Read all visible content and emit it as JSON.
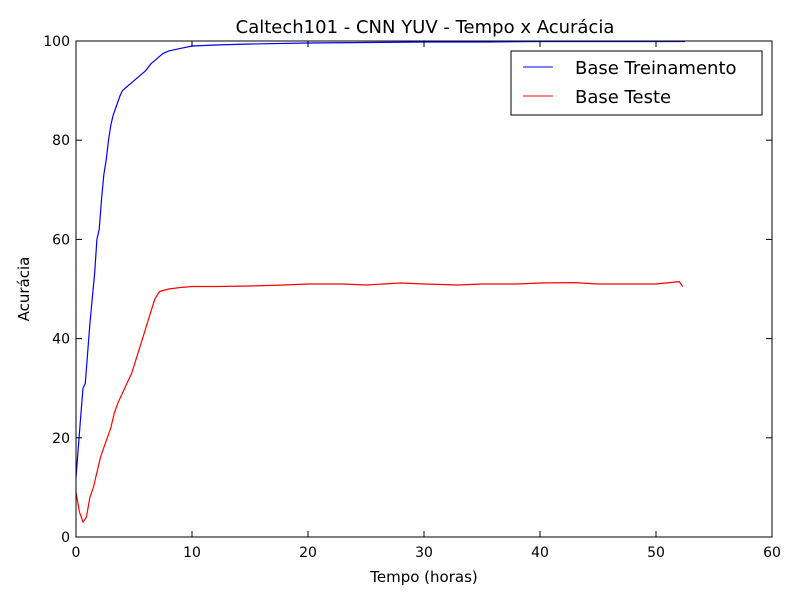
{
  "chart_data": {
    "type": "line",
    "title": "Caltech101 - CNN YUV - Tempo x Acurácia",
    "xlabel": "Tempo (horas)",
    "ylabel": "Acurácia",
    "xlim": [
      0,
      60
    ],
    "ylim": [
      0,
      100
    ],
    "xticks": [
      "0",
      "10",
      "20",
      "30",
      "40",
      "50",
      "60"
    ],
    "yticks": [
      "0",
      "20",
      "40",
      "60",
      "80",
      "100"
    ],
    "grid": false,
    "legend_position": "top-right",
    "series": [
      {
        "name": "Base Treinamento",
        "color": "#0000ff",
        "x": [
          0,
          0.2,
          0.4,
          0.6,
          0.8,
          1.0,
          1.2,
          1.4,
          1.6,
          1.8,
          2.0,
          2.2,
          2.4,
          2.6,
          2.8,
          3.0,
          3.2,
          3.5,
          3.8,
          4.0,
          4.5,
          5.0,
          5.5,
          6.0,
          6.5,
          7.0,
          7.5,
          8.0,
          9.0,
          10.0,
          12.0,
          15.0,
          20.0,
          25.0,
          30.0,
          35.0,
          40.0,
          45.0,
          50.0,
          52.5
        ],
        "y": [
          12,
          18,
          24,
          30,
          31,
          37,
          43,
          48,
          53,
          60,
          62,
          68,
          73,
          76,
          80,
          83,
          85,
          87,
          89,
          90,
          91,
          92,
          93,
          94,
          95.5,
          96.5,
          97.5,
          98,
          98.5,
          99,
          99.2,
          99.4,
          99.6,
          99.7,
          99.8,
          99.8,
          99.9,
          99.9,
          99.9,
          99.9
        ]
      },
      {
        "name": "Base Teste",
        "color": "#ff0000",
        "x": [
          0,
          0.3,
          0.6,
          0.9,
          1.2,
          1.5,
          1.8,
          2.1,
          2.4,
          2.7,
          3.0,
          3.3,
          3.6,
          4.0,
          4.4,
          4.8,
          5.2,
          5.6,
          6.0,
          6.4,
          6.8,
          7.2,
          8.0,
          9.0,
          10.0,
          12.0,
          15.0,
          18.0,
          20.0,
          23.0,
          25.0,
          28.0,
          30.0,
          33.0,
          35.0,
          38.0,
          40.0,
          43.0,
          45.0,
          48.0,
          50.0,
          52.0,
          52.3
        ],
        "y": [
          9,
          5,
          3,
          4,
          8,
          10,
          13,
          16,
          18,
          20,
          22,
          25,
          27,
          29,
          31,
          33,
          36,
          39,
          42,
          45,
          48,
          49.5,
          50,
          50.3,
          50.5,
          50.5,
          50.6,
          50.8,
          51,
          51,
          50.8,
          51.2,
          51,
          50.8,
          51,
          51,
          51.2,
          51.3,
          51,
          51,
          51,
          51.5,
          50.5
        ]
      }
    ]
  }
}
